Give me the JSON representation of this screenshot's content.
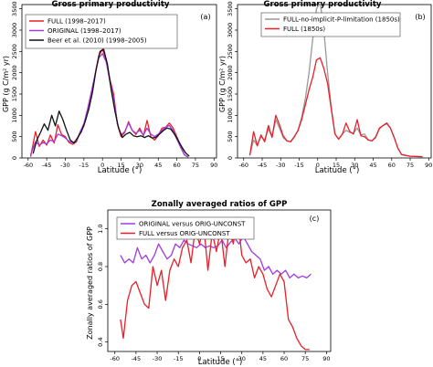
{
  "chart_data": [
    {
      "id": "a",
      "type": "line",
      "title": "Gross primary productivity",
      "panel_label": "(a)",
      "xlabel": "Latitude (°)",
      "ylabel": "GPP (g C/m² yr)",
      "xlim": [
        -65,
        92
      ],
      "ylim": [
        0,
        3600
      ],
      "xticks": [
        -60,
        -45,
        -30,
        -15,
        0,
        15,
        30,
        45,
        60,
        75,
        90
      ],
      "yticks": [
        0,
        500,
        1000,
        1500,
        2000,
        2500,
        3000,
        3500
      ],
      "grid": false,
      "legend": "top-left",
      "series": [
        {
          "name": "FULL (1998–2017)",
          "color": "#e8202a",
          "x": [
            -58,
            -54,
            -51,
            -48,
            -45,
            -42,
            -39,
            -36,
            -33,
            -30,
            -27,
            -24,
            -21,
            -18,
            -15,
            -12,
            -9,
            -6,
            -3,
            0,
            3,
            6,
            9,
            12,
            15,
            18,
            21,
            24,
            27,
            30,
            33,
            36,
            39,
            42,
            45,
            48,
            51,
            54,
            57,
            60,
            63,
            66,
            69
          ],
          "y": [
            30,
            620,
            270,
            420,
            300,
            540,
            350,
            780,
            550,
            500,
            360,
            320,
            380,
            600,
            750,
            1100,
            1500,
            1950,
            2400,
            2550,
            2300,
            1850,
            1500,
            800,
            500,
            600,
            850,
            650,
            550,
            700,
            520,
            880,
            500,
            420,
            520,
            700,
            720,
            820,
            700,
            500,
            280,
            80,
            20
          ]
        },
        {
          "name": "ORIGINAL (1998–2017)",
          "color": "#a13ae0",
          "x": [
            -58,
            -54,
            -51,
            -48,
            -45,
            -42,
            -39,
            -36,
            -33,
            -30,
            -27,
            -24,
            -21,
            -18,
            -15,
            -12,
            -9,
            -6,
            -3,
            0,
            3,
            6,
            9,
            12,
            15,
            18,
            21,
            24,
            27,
            30,
            33,
            36,
            39,
            42,
            45,
            48,
            51,
            54,
            57,
            60,
            63,
            66,
            69
          ],
          "y": [
            80,
            380,
            300,
            360,
            330,
            420,
            380,
            560,
            520,
            470,
            390,
            360,
            400,
            620,
            800,
            1150,
            1550,
            1950,
            2350,
            2450,
            2250,
            1800,
            1400,
            800,
            540,
            620,
            820,
            650,
            580,
            650,
            540,
            700,
            560,
            500,
            560,
            650,
            720,
            760,
            640,
            440,
            250,
            80,
            20
          ]
        },
        {
          "name": "Beer et al. (2010) (1998–2005)",
          "color": "#111111",
          "x": [
            -56,
            -53,
            -50,
            -47,
            -44,
            -41,
            -38,
            -35,
            -32,
            -29,
            -26,
            -23,
            -20,
            -17,
            -14,
            -11,
            -8,
            -5,
            -2,
            1,
            4,
            7,
            10,
            13,
            16,
            19,
            22,
            25,
            28,
            31,
            34,
            37,
            40,
            43,
            46,
            49,
            52,
            55,
            58,
            61,
            64,
            67,
            70
          ],
          "y": [
            100,
            420,
            600,
            800,
            650,
            1000,
            750,
            1100,
            900,
            650,
            420,
            350,
            480,
            620,
            850,
            1150,
            1550,
            2100,
            2500,
            2550,
            2200,
            1600,
            1100,
            700,
            480,
            560,
            600,
            520,
            500,
            520,
            480,
            520,
            470,
            480,
            560,
            640,
            700,
            680,
            560,
            420,
            260,
            120,
            40
          ]
        }
      ]
    },
    {
      "id": "b",
      "type": "line",
      "title": "Gross primary productivity",
      "panel_label": "(b)",
      "xlabel": "Latitude (°)",
      "ylabel": "GPP (g C/m² yr)",
      "xlim": [
        -65,
        92
      ],
      "ylim": [
        0,
        3600
      ],
      "xticks": [
        -60,
        -45,
        -30,
        -15,
        0,
        15,
        30,
        45,
        60,
        75,
        90
      ],
      "yticks": [
        0,
        500,
        1000,
        1500,
        2000,
        2500,
        3000,
        3500
      ],
      "grid": false,
      "legend": "top-right",
      "series": [
        {
          "name": "FULL-no-implicit-P-limitation (1850s)",
          "color": "#999999",
          "x": [
            -55,
            -52,
            -49,
            -46,
            -43,
            -40,
            -37,
            -34,
            -31,
            -28,
            -25,
            -22,
            -19,
            -16,
            -13,
            -10,
            -7,
            -4,
            -1,
            2,
            5,
            8,
            11,
            14,
            17,
            20,
            23,
            26,
            29,
            32,
            35,
            38,
            41,
            44,
            47,
            50,
            53,
            56,
            59,
            62,
            65,
            68,
            75,
            85
          ],
          "y": [
            80,
            420,
            300,
            500,
            420,
            680,
            500,
            900,
            700,
            480,
            400,
            380,
            480,
            650,
            950,
            1400,
            2000,
            2800,
            3500,
            3650,
            3000,
            2000,
            1200,
            560,
            450,
            560,
            650,
            600,
            580,
            700,
            540,
            560,
            420,
            400,
            500,
            680,
            760,
            800,
            700,
            480,
            230,
            80,
            40,
            30
          ]
        },
        {
          "name": "FULL (1850s)",
          "color": "#e8202a",
          "x": [
            -55,
            -52,
            -49,
            -46,
            -43,
            -40,
            -37,
            -34,
            -31,
            -28,
            -25,
            -22,
            -19,
            -16,
            -13,
            -10,
            -7,
            -4,
            -1,
            2,
            5,
            8,
            11,
            14,
            17,
            20,
            23,
            26,
            29,
            32,
            35,
            38,
            41,
            44,
            47,
            50,
            53,
            56,
            59,
            62,
            65,
            68,
            75,
            85
          ],
          "y": [
            60,
            620,
            280,
            540,
            380,
            760,
            480,
            1000,
            780,
            520,
            400,
            380,
            500,
            640,
            900,
            1250,
            1600,
            1900,
            2300,
            2350,
            2100,
            1750,
            1150,
            560,
            440,
            560,
            820,
            620,
            560,
            900,
            520,
            500,
            420,
            400,
            480,
            700,
            760,
            820,
            700,
            480,
            230,
            80,
            40,
            30
          ]
        }
      ]
    },
    {
      "id": "c",
      "type": "line",
      "title": "Zonally averaged ratios of GPP",
      "panel_label": "(c)",
      "xlabel": "Latitude (°)",
      "ylabel": "Zonally averaged ratios of GPP",
      "xlim": [
        -65,
        93
      ],
      "ylim": [
        0.35,
        1.1
      ],
      "xticks": [
        -60,
        -45,
        -30,
        -15,
        0,
        15,
        30,
        45,
        60,
        75,
        90
      ],
      "yticks": [
        0.4,
        0.6,
        0.8,
        1.0
      ],
      "grid": false,
      "legend": "top-left",
      "series": [
        {
          "name": "ORIGINAL versus ORIG-UNCONST",
          "color": "#a13ae0",
          "x": [
            -56,
            -53,
            -50,
            -47,
            -44,
            -41,
            -38,
            -35,
            -32,
            -29,
            -26,
            -23,
            -20,
            -17,
            -14,
            -11,
            -8,
            -5,
            -2,
            1,
            4,
            7,
            10,
            13,
            16,
            19,
            22,
            25,
            28,
            31,
            34,
            37,
            40,
            43,
            46,
            49,
            52,
            55,
            58,
            61,
            64,
            67,
            70,
            73,
            76,
            79
          ],
          "y": [
            0.86,
            0.82,
            0.84,
            0.82,
            0.9,
            0.84,
            0.86,
            0.82,
            0.86,
            0.92,
            0.88,
            0.84,
            0.86,
            0.92,
            0.9,
            0.94,
            0.92,
            0.91,
            0.9,
            0.92,
            0.9,
            0.91,
            0.9,
            0.91,
            0.94,
            0.9,
            0.93,
            0.95,
            0.92,
            0.96,
            0.92,
            0.88,
            0.86,
            0.84,
            0.78,
            0.8,
            0.76,
            0.78,
            0.76,
            0.78,
            0.74,
            0.76,
            0.74,
            0.75,
            0.74,
            0.76
          ]
        },
        {
          "name": "FULL versus ORIG-UNCONST",
          "color": "#e8202a",
          "x": [
            -56,
            -54,
            -51,
            -48,
            -45,
            -42,
            -39,
            -36,
            -33,
            -30,
            -27,
            -24,
            -21,
            -18,
            -15,
            -12,
            -9,
            -6,
            -3,
            0,
            3,
            6,
            9,
            12,
            15,
            18,
            21,
            24,
            27,
            30,
            33,
            36,
            39,
            42,
            45,
            48,
            51,
            54,
            57,
            60,
            63,
            66,
            69,
            72,
            75,
            78
          ],
          "y": [
            0.52,
            0.42,
            0.62,
            0.7,
            0.72,
            0.66,
            0.6,
            0.58,
            0.8,
            0.7,
            0.78,
            0.62,
            0.78,
            0.84,
            0.8,
            0.9,
            0.94,
            0.82,
            1.0,
            0.92,
            1.02,
            0.78,
            0.98,
            0.88,
            1.0,
            0.8,
            1.0,
            0.92,
            1.06,
            0.86,
            0.82,
            0.84,
            0.74,
            0.8,
            0.76,
            0.68,
            0.64,
            0.7,
            0.76,
            0.72,
            0.52,
            0.48,
            0.42,
            0.38,
            0.36,
            0.36
          ]
        }
      ]
    }
  ]
}
